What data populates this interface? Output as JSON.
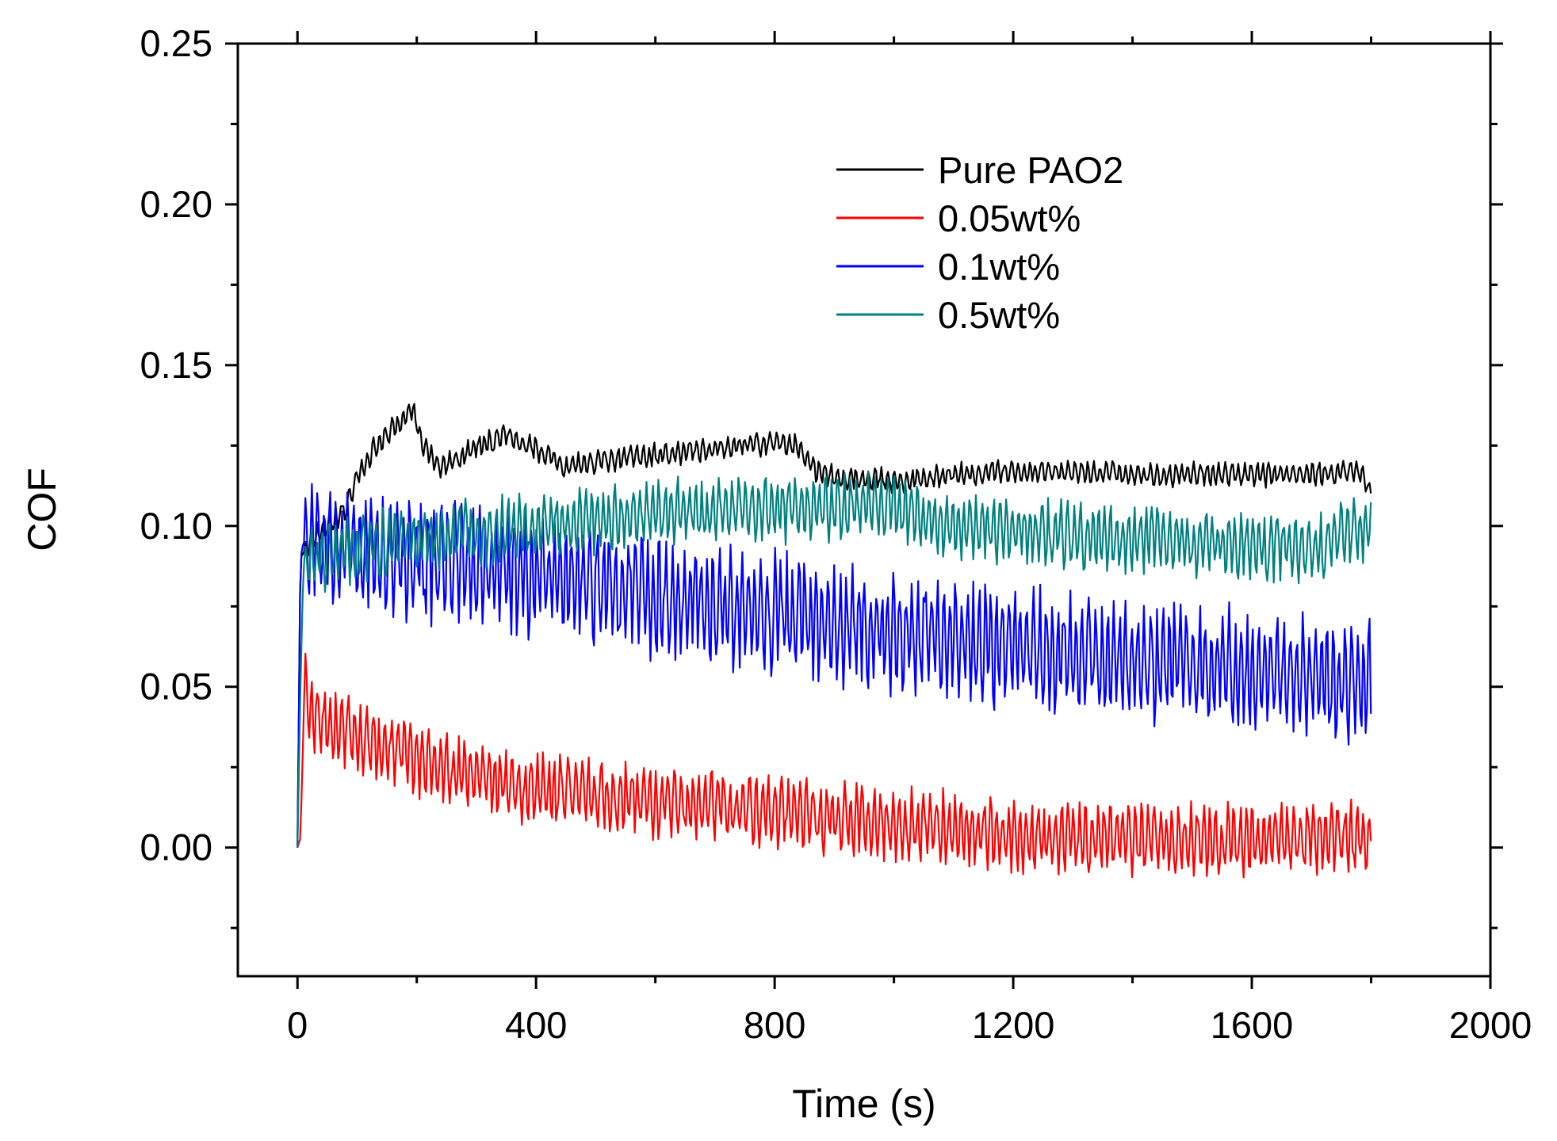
{
  "chart_data": {
    "type": "line",
    "title": "",
    "xlabel": "Time (s)",
    "ylabel": "COF",
    "xlim": [
      -100,
      2000
    ],
    "ylim": [
      -0.04,
      0.25
    ],
    "x_ticks": [
      0,
      400,
      800,
      1200,
      1600,
      2000
    ],
    "x_tick_labels": [
      "0",
      "400",
      "800",
      "1200",
      "1600",
      "2000"
    ],
    "y_ticks": [
      0.0,
      0.05,
      0.1,
      0.15,
      0.2,
      0.25
    ],
    "y_tick_labels": [
      "0.00",
      "0.05",
      "0.10",
      "0.15",
      "0.20",
      "0.25"
    ],
    "grid": false,
    "legend_position": "top-center",
    "series": [
      {
        "name": "Pure PAO2",
        "color": "#000000",
        "x": [
          0,
          5,
          20,
          50,
          80,
          100,
          120,
          150,
          170,
          190,
          200,
          210,
          240,
          300,
          350,
          400,
          450,
          500,
          600,
          700,
          800,
          840,
          870,
          900,
          1000,
          1100,
          1200,
          1300,
          1400,
          1500,
          1600,
          1700,
          1780,
          1800
        ],
        "values": [
          0.0,
          0.09,
          0.095,
          0.1,
          0.105,
          0.115,
          0.122,
          0.128,
          0.132,
          0.136,
          0.133,
          0.125,
          0.118,
          0.125,
          0.128,
          0.124,
          0.118,
          0.12,
          0.122,
          0.124,
          0.126,
          0.125,
          0.117,
          0.115,
          0.114,
          0.116,
          0.117,
          0.117,
          0.116,
          0.116,
          0.116,
          0.116,
          0.117,
          0.111
        ],
        "noise_amplitude": 0.004
      },
      {
        "name": "0.05wt%",
        "color": "#ff0000",
        "x": [
          0,
          5,
          12,
          20,
          50,
          100,
          200,
          300,
          400,
          500,
          600,
          700,
          800,
          900,
          1000,
          1100,
          1200,
          1300,
          1400,
          1500,
          1600,
          1700,
          1800
        ],
        "values": [
          0.0,
          0.003,
          0.052,
          0.042,
          0.038,
          0.035,
          0.027,
          0.022,
          0.018,
          0.016,
          0.014,
          0.013,
          0.011,
          0.009,
          0.007,
          0.006,
          0.004,
          0.003,
          0.003,
          0.002,
          0.002,
          0.003,
          0.003
        ],
        "noise_amplitude": 0.012
      },
      {
        "name": "0.1wt%",
        "color": "#0000ff",
        "x": [
          0,
          5,
          10,
          30,
          100,
          200,
          300,
          400,
          500,
          600,
          700,
          800,
          900,
          1000,
          1100,
          1200,
          1300,
          1400,
          1500,
          1600,
          1700,
          1800
        ],
        "values": [
          0.0,
          0.09,
          0.095,
          0.094,
          0.093,
          0.09,
          0.087,
          0.084,
          0.081,
          0.078,
          0.075,
          0.073,
          0.07,
          0.067,
          0.065,
          0.062,
          0.06,
          0.058,
          0.057,
          0.055,
          0.054,
          0.052
        ],
        "noise_amplitude": 0.02
      },
      {
        "name": "0.5wt%",
        "color": "#008080",
        "x": [
          0,
          5,
          10,
          40,
          100,
          200,
          300,
          400,
          500,
          600,
          700,
          800,
          900,
          1000,
          1100,
          1200,
          1300,
          1400,
          1500,
          1600,
          1700,
          1800
        ],
        "values": [
          0.0,
          0.05,
          0.088,
          0.09,
          0.093,
          0.096,
          0.098,
          0.1,
          0.102,
          0.104,
          0.105,
          0.105,
          0.106,
          0.106,
          0.1,
          0.099,
          0.097,
          0.096,
          0.095,
          0.094,
          0.093,
          0.1
        ],
        "noise_amplitude": 0.011
      }
    ]
  }
}
